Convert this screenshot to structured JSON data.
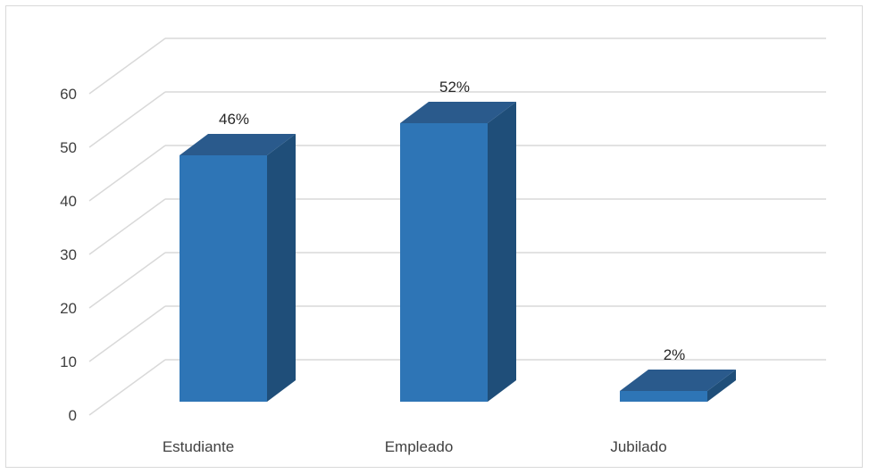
{
  "chart_data": {
    "type": "bar",
    "style": "3d-column",
    "categories": [
      "Estudiante",
      "Empleado",
      "Jubilado"
    ],
    "values": [
      46,
      52,
      2
    ],
    "data_labels": [
      "46%",
      "52%",
      "2%"
    ],
    "title": "",
    "xlabel": "",
    "ylabel": "",
    "ylim": [
      0,
      60
    ],
    "yticks": [
      0,
      10,
      20,
      30,
      40,
      50,
      60
    ],
    "ytick_labels": [
      "0",
      "10",
      "20",
      "30",
      "40",
      "50",
      "60"
    ],
    "grid": true,
    "legend": "none",
    "colors": {
      "bar_front": "#2e75b6",
      "bar_top": "#2a5a8c",
      "bar_side": "#1f4e79",
      "grid": "#d9d9d9",
      "text": "#404040"
    }
  }
}
